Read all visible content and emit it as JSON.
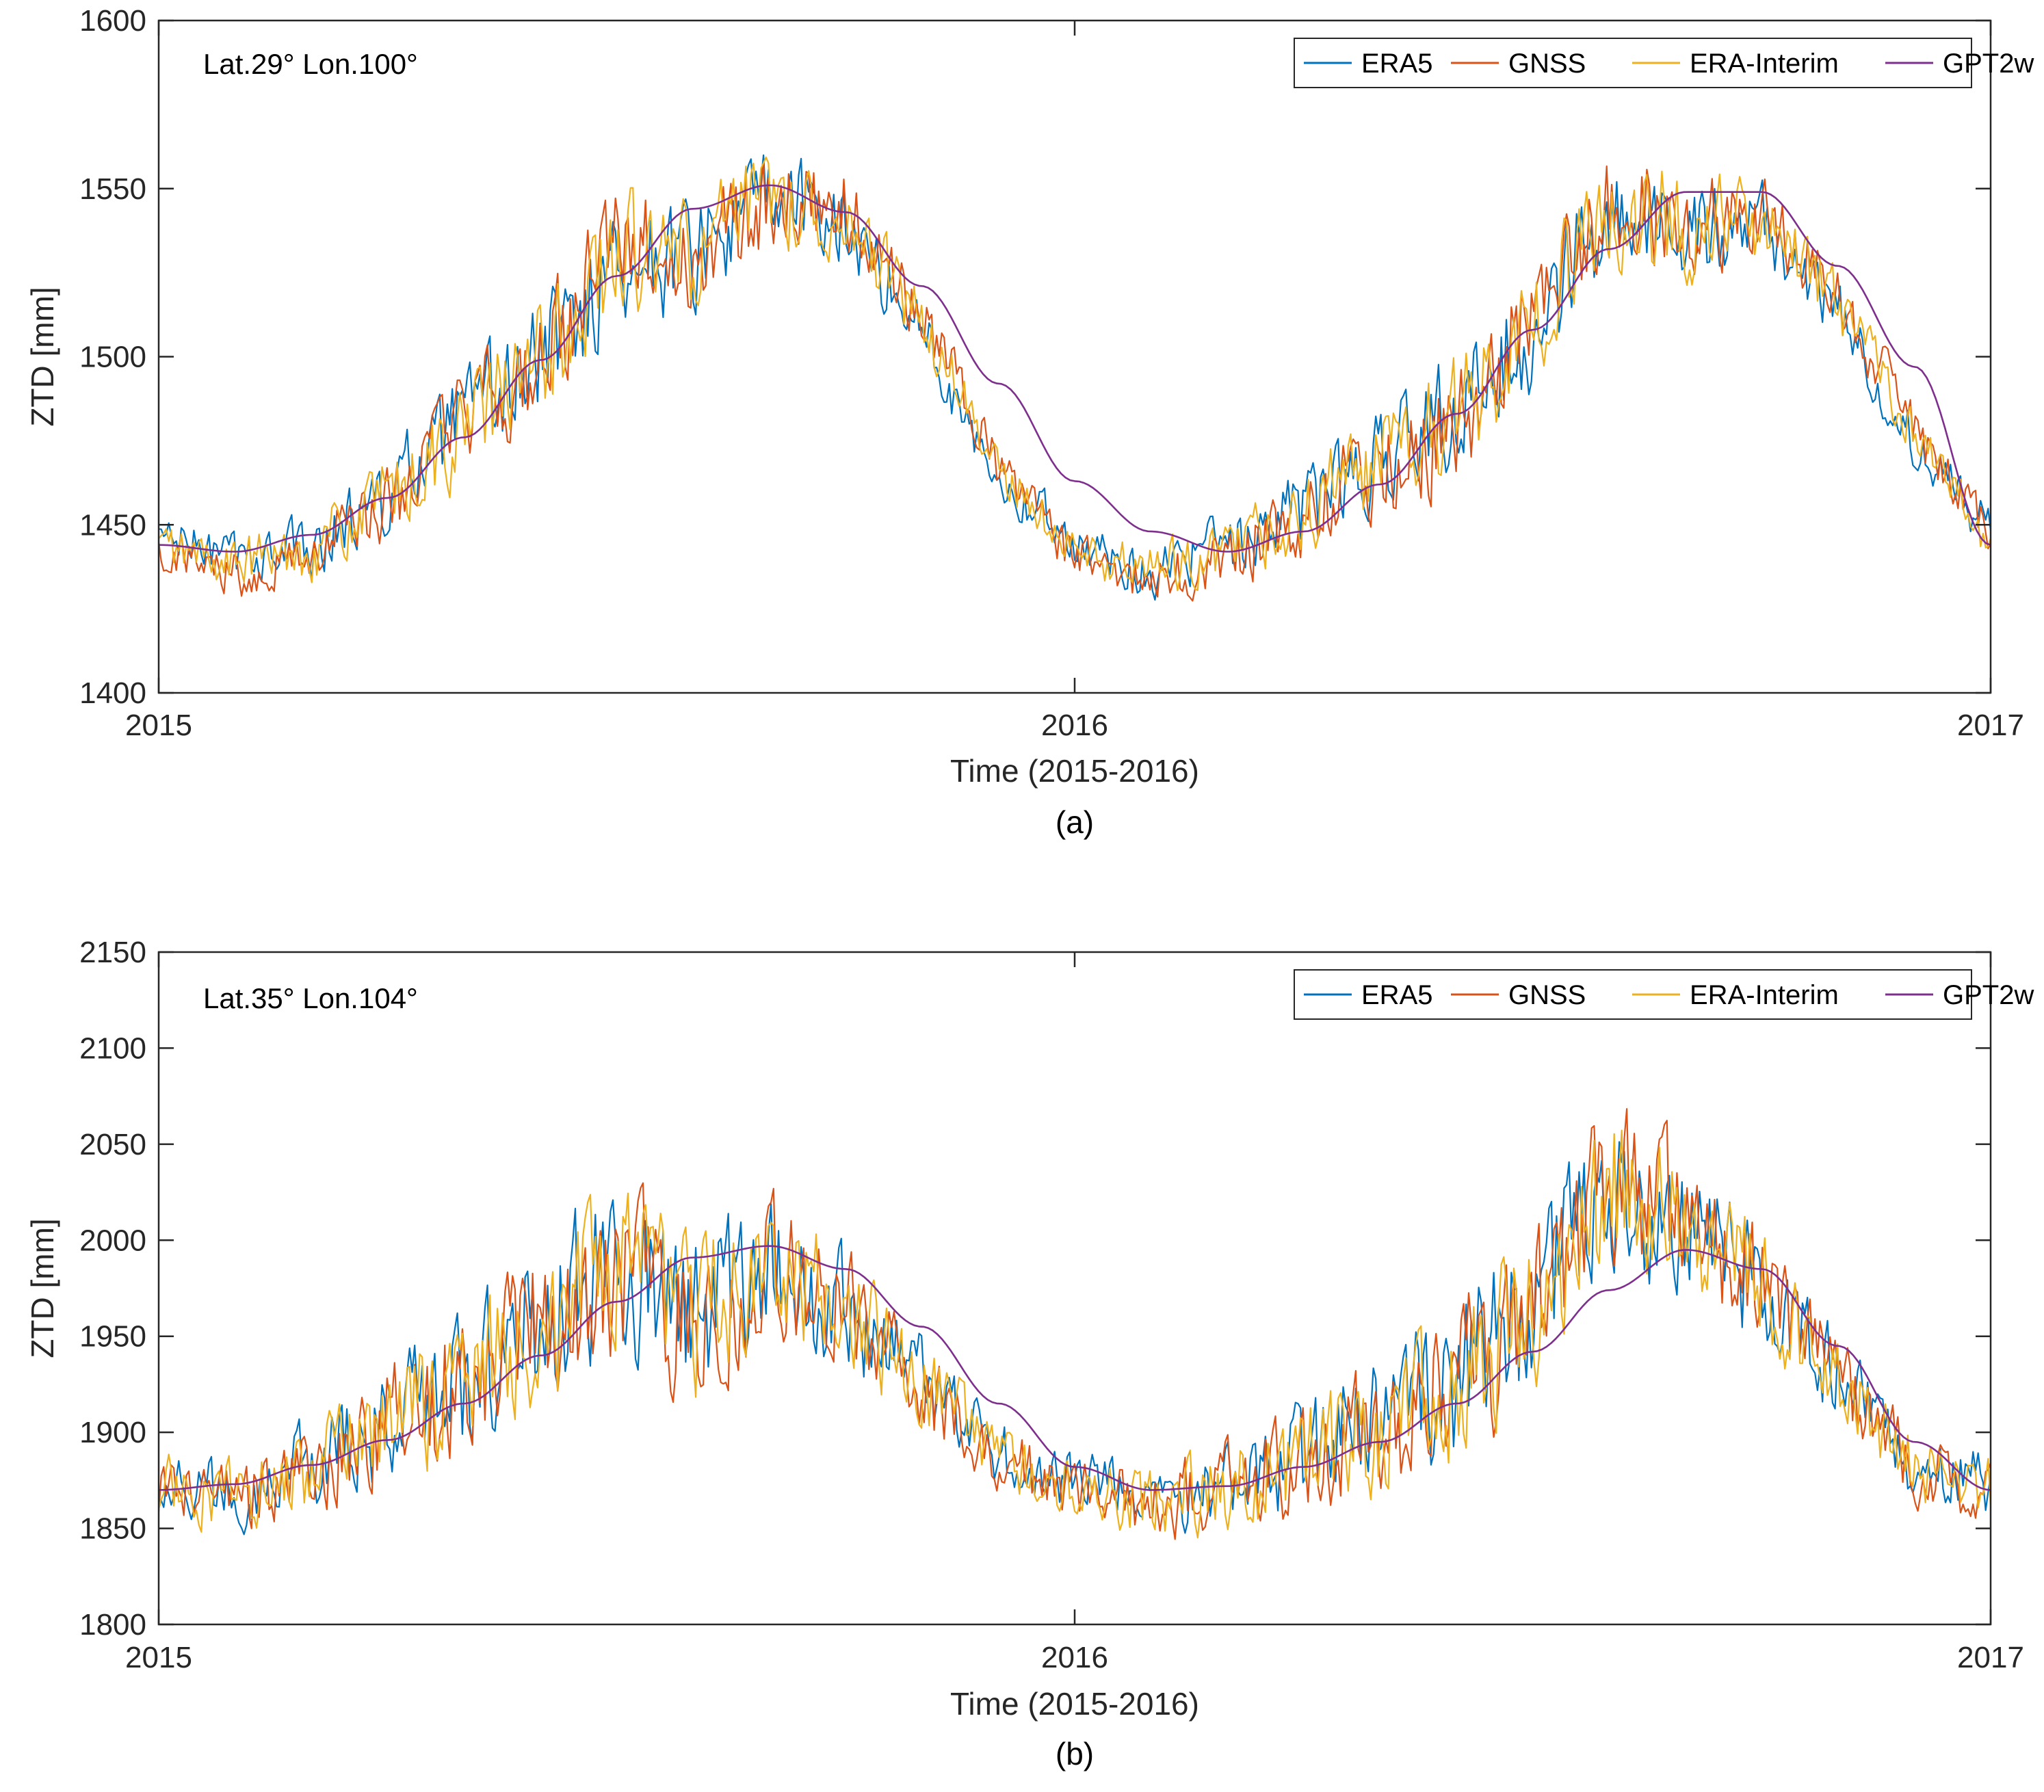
{
  "colors": {
    "ERA5": "#0072BD",
    "GNSS": "#D95319",
    "ERA-Interim": "#EDB120",
    "GPT2w": "#7E2F8E",
    "axis": "#262626",
    "background": "#ffffff"
  },
  "chart_data": [
    {
      "type": "line",
      "caption": "(a)",
      "annotation": "Lat.29° Lon.100°",
      "xlabel": "Time (2015-2016)",
      "ylabel": "ZTD [mm]",
      "xlim": [
        2015,
        2017
      ],
      "ylim": [
        1400,
        1600
      ],
      "xticks": [
        2015,
        2016,
        2017
      ],
      "xtick_labels": [
        "2015",
        "2016",
        "2017"
      ],
      "yticks": [
        1400,
        1450,
        1500,
        1550,
        1600
      ],
      "ytick_labels": [
        "1400",
        "1450",
        "1500",
        "1550",
        "1600"
      ],
      "legend": [
        "ERA5",
        "GNSS",
        "ERA-Interim",
        "GPT2w"
      ],
      "legend_location": "top-right",
      "x": [
        2015.0,
        2015.083,
        2015.167,
        2015.25,
        2015.333,
        2015.417,
        2015.5,
        2015.583,
        2015.667,
        2015.75,
        2015.833,
        2015.917,
        2016.0,
        2016.083,
        2016.167,
        2016.25,
        2016.333,
        2016.417,
        2016.5,
        2016.583,
        2016.667,
        2016.75,
        2016.833,
        2016.917,
        2017.0
      ],
      "series": [
        {
          "name": "GPT2w",
          "values": [
            1444,
            1442,
            1447,
            1458,
            1476,
            1499,
            1524,
            1544,
            1551,
            1543,
            1521,
            1492,
            1463,
            1448,
            1442,
            1448,
            1462,
            1483,
            1508,
            1532,
            1549,
            1549,
            1527,
            1497,
            1444
          ]
        },
        {
          "name": "GNSS",
          "values": [
            1443,
            1436,
            1442,
            1455,
            1482,
            1496,
            1533,
            1527,
            1549,
            1544,
            1512,
            1466,
            1440,
            1434,
            1440,
            1452,
            1468,
            1478,
            1512,
            1545,
            1540,
            1542,
            1519,
            1478,
            1446
          ]
        },
        {
          "name": "ERA5",
          "values": [
            1447,
            1440,
            1444,
            1458,
            1480,
            1499,
            1528,
            1530,
            1547,
            1540,
            1508,
            1464,
            1445,
            1436,
            1443,
            1455,
            1470,
            1485,
            1508,
            1542,
            1537,
            1539,
            1514,
            1474,
            1448
          ]
        },
        {
          "name": "ERA-Interim",
          "values": [
            1444,
            1438,
            1443,
            1457,
            1478,
            1498,
            1530,
            1529,
            1548,
            1541,
            1510,
            1466,
            1442,
            1437,
            1442,
            1453,
            1469,
            1482,
            1511,
            1544,
            1539,
            1540,
            1517,
            1476,
            1445
          ]
        }
      ]
    },
    {
      "type": "line",
      "caption": "(b)",
      "annotation": "Lat.35° Lon.104°",
      "xlabel": "Time (2015-2016)",
      "ylabel": "ZTD [mm]",
      "xlim": [
        2015,
        2017
      ],
      "ylim": [
        1800,
        2150
      ],
      "xticks": [
        2015,
        2016,
        2017
      ],
      "xtick_labels": [
        "2015",
        "2016",
        "2017"
      ],
      "yticks": [
        1800,
        1850,
        1900,
        1950,
        2000,
        2050,
        2100,
        2150
      ],
      "ytick_labels": [
        "1800",
        "1850",
        "1900",
        "1950",
        "2000",
        "2050",
        "2100",
        "2150"
      ],
      "legend": [
        "ERA5",
        "GNSS",
        "ERA-Interim",
        "GPT2w"
      ],
      "legend_location": "top-right",
      "x": [
        2015.0,
        2015.083,
        2015.167,
        2015.25,
        2015.333,
        2015.417,
        2015.5,
        2015.583,
        2015.667,
        2015.75,
        2015.833,
        2015.917,
        2016.0,
        2016.083,
        2016.167,
        2016.25,
        2016.333,
        2016.417,
        2016.5,
        2016.583,
        2016.667,
        2016.75,
        2016.833,
        2016.917,
        2017.0
      ],
      "series": [
        {
          "name": "GPT2w",
          "values": [
            1870,
            1873,
            1883,
            1896,
            1915,
            1940,
            1968,
            1991,
            1997,
            1985,
            1955,
            1915,
            1882,
            1870,
            1872,
            1882,
            1895,
            1915,
            1942,
            1974,
            1995,
            1985,
            1945,
            1895,
            1870
          ]
        },
        {
          "name": "GNSS",
          "values": [
            1872,
            1865,
            1880,
            1905,
            1925,
            1955,
            1985,
            1960,
            1985,
            1965,
            1925,
            1885,
            1868,
            1863,
            1870,
            1885,
            1905,
            1930,
            1960,
            2030,
            2010,
            1975,
            1930,
            1880,
            1870
          ]
        },
        {
          "name": "ERA5",
          "values": [
            1875,
            1868,
            1883,
            1902,
            1928,
            1958,
            1982,
            1963,
            1982,
            1962,
            1928,
            1888,
            1872,
            1866,
            1873,
            1888,
            1902,
            1927,
            1963,
            2025,
            2005,
            1972,
            1927,
            1883,
            1873
          ]
        },
        {
          "name": "ERA-Interim",
          "values": [
            1873,
            1866,
            1881,
            1904,
            1926,
            1956,
            1984,
            1961,
            1984,
            1964,
            1926,
            1886,
            1870,
            1864,
            1871,
            1886,
            1904,
            1929,
            1961,
            2028,
            2008,
            1974,
            1929,
            1881,
            1871
          ]
        }
      ]
    }
  ]
}
